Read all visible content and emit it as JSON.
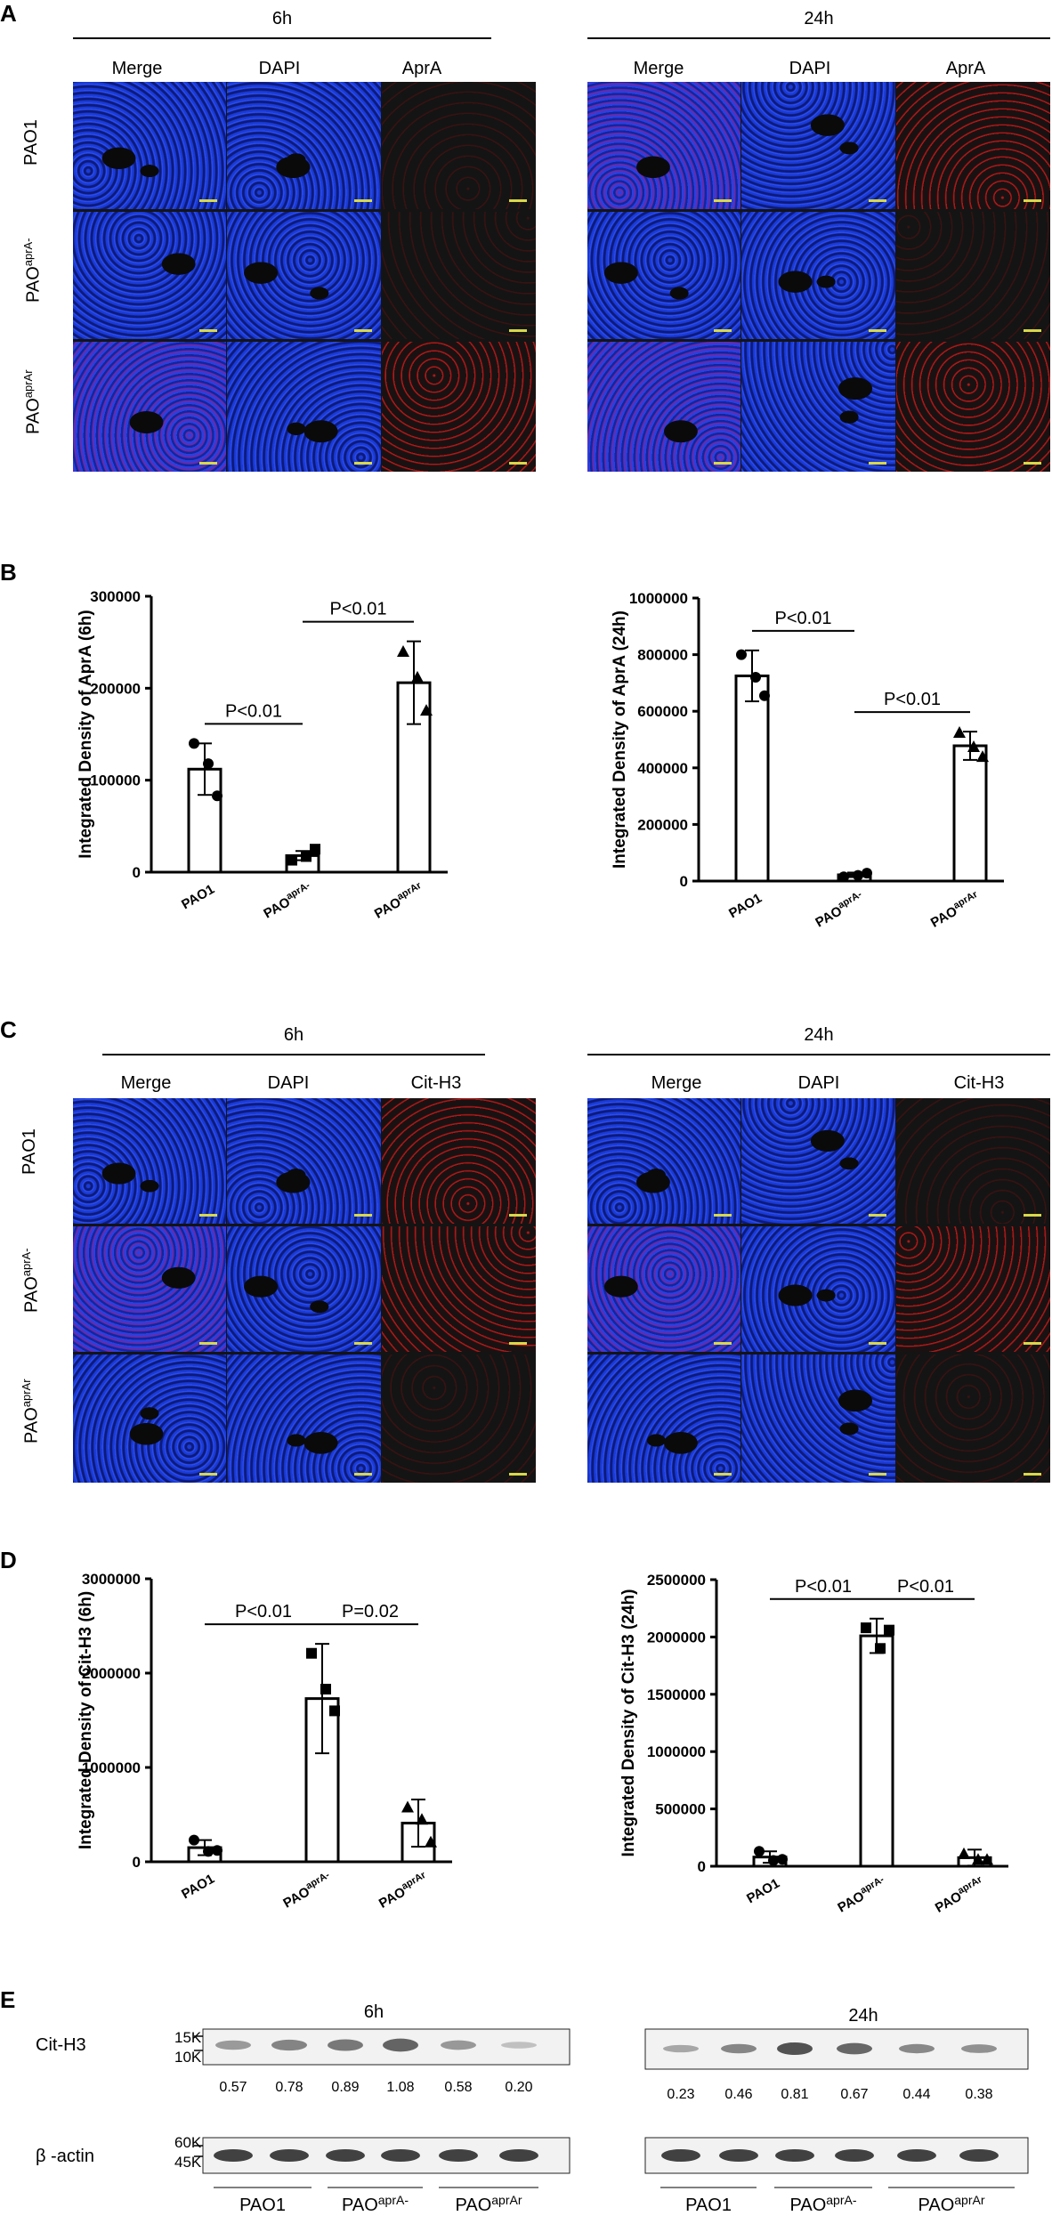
{
  "panels": {
    "A": {
      "letter": "A",
      "time_left": "6h",
      "time_right": "24h",
      "columns": [
        "Merge",
        "DAPI",
        "AprA"
      ],
      "rows": [
        {
          "base": "PAO1",
          "sup": ""
        },
        {
          "base": "PAO",
          "sup": "aprA-"
        },
        {
          "base": "PAO",
          "sup": "aprAr"
        }
      ]
    },
    "B": {
      "letter": "B"
    },
    "C": {
      "letter": "C",
      "time_left": "6h",
      "time_right": "24h",
      "columns": [
        "Merge",
        "DAPI",
        "Cit-H3"
      ],
      "rows": [
        {
          "base": "PAO1",
          "sup": ""
        },
        {
          "base": "PAO",
          "sup": "aprA-"
        },
        {
          "base": "PAO",
          "sup": "aprAr"
        }
      ]
    },
    "D": {
      "letter": "D"
    },
    "E": {
      "letter": "E",
      "time_left": "6h",
      "time_right": "24h",
      "rows": [
        "Cit-H3",
        "β -actin"
      ],
      "markers_top": [
        "15K",
        "10K"
      ],
      "markers_bottom": [
        "60K",
        "45K"
      ],
      "densities_left": [
        "0.57",
        "0.78",
        "0.89",
        "1.08",
        "0.58",
        "0.20"
      ],
      "densities_right": [
        "0.23",
        "0.46",
        "0.81",
        "0.67",
        "0.44",
        "0.38"
      ],
      "lanes": [
        {
          "base": "PAO1",
          "sup": ""
        },
        {
          "base": "PAO",
          "sup": "aprA-"
        },
        {
          "base": "PAO",
          "sup": "aprAr"
        }
      ]
    }
  },
  "chart_data": [
    {
      "type": "bar",
      "panel": "B-left",
      "ylabel": "Integrated Density of AprA (6h)",
      "categories": [
        "PAO1",
        "PAOaprA-",
        "PAOaprAr"
      ],
      "category_sups": [
        "",
        "aprA-",
        "aprAr"
      ],
      "values": [
        112000,
        18000,
        206000
      ],
      "errors": [
        28000,
        5000,
        45000
      ],
      "points": [
        [
          140000,
          118000,
          83000
        ],
        [
          13000,
          17000,
          25000
        ],
        [
          240000,
          212000,
          176000
        ]
      ],
      "markers": [
        "circle",
        "square",
        "triangle"
      ],
      "ylim": [
        0,
        300000
      ],
      "yticks": [
        "0",
        "100000",
        "200000",
        "300000"
      ],
      "comparisons": [
        {
          "from": 0,
          "to": 1,
          "label": "P<0.01"
        },
        {
          "from": 1,
          "to": 2,
          "label": "P<0.01"
        }
      ]
    },
    {
      "type": "bar",
      "panel": "B-right",
      "ylabel": "Integrated Density of AprA (24h)",
      "categories": [
        "PAO1",
        "PAOaprA-",
        "PAOaprAr"
      ],
      "category_sups": [
        "",
        "aprA-",
        "aprAr"
      ],
      "values": [
        725000,
        22000,
        478000
      ],
      "errors": [
        90000,
        8000,
        50000
      ],
      "points": [
        [
          800000,
          720000,
          655000
        ],
        [
          15000,
          20000,
          28000
        ],
        [
          525000,
          475000,
          440000
        ]
      ],
      "markers": [
        "circle",
        "circle",
        "triangle"
      ],
      "ylim": [
        0,
        1000000
      ],
      "yticks": [
        "0",
        "200000",
        "400000",
        "600000",
        "800000",
        "1000000"
      ],
      "comparisons": [
        {
          "from": 0,
          "to": 1,
          "label": "P<0.01"
        },
        {
          "from": 1,
          "to": 2,
          "label": "P<0.01"
        }
      ]
    },
    {
      "type": "bar",
      "panel": "D-left",
      "ylabel": "Integrated Density of Cit-H3 (6h)",
      "categories": [
        "PAO1",
        "PAOaprA-",
        "PAOaprAr"
      ],
      "category_sups": [
        "",
        "aprA-",
        "aprAr"
      ],
      "values": [
        150000,
        1730000,
        410000
      ],
      "errors": [
        80000,
        580000,
        250000
      ],
      "points": [
        [
          230000,
          110000,
          120000
        ],
        [
          2210000,
          1830000,
          1600000
        ],
        [
          580000,
          450000,
          210000
        ]
      ],
      "markers": [
        "circle",
        "square",
        "triangle"
      ],
      "ylim": [
        0,
        3000000
      ],
      "yticks": [
        "0",
        "1000000",
        "2000000",
        "3000000"
      ],
      "comparisons": [
        {
          "from": 0,
          "to": 1,
          "label": "P<0.01"
        },
        {
          "from": 1,
          "to": 2,
          "label": "P=0.02"
        }
      ]
    },
    {
      "type": "bar",
      "panel": "D-right",
      "ylabel": "Integrated Density of Cit-H3 (24h)",
      "categories": [
        "PAO1",
        "PAOaprA-",
        "PAOaprAr"
      ],
      "category_sups": [
        "",
        "aprA-",
        "aprAr"
      ],
      "values": [
        80000,
        2010000,
        75000
      ],
      "errors": [
        50000,
        150000,
        70000
      ],
      "points": [
        [
          130000,
          50000,
          60000
        ],
        [
          2080000,
          1900000,
          2060000
        ],
        [
          110000,
          60000,
          60000
        ]
      ],
      "markers": [
        "circle",
        "square",
        "triangle"
      ],
      "ylim": [
        0,
        2500000
      ],
      "yticks": [
        "0",
        "500000",
        "1000000",
        "1500000",
        "2000000",
        "2500000"
      ],
      "comparisons": [
        {
          "from": 0,
          "to": 1,
          "label": "P<0.01"
        },
        {
          "from": 1,
          "to": 2,
          "label": "P<0.01"
        }
      ]
    }
  ]
}
